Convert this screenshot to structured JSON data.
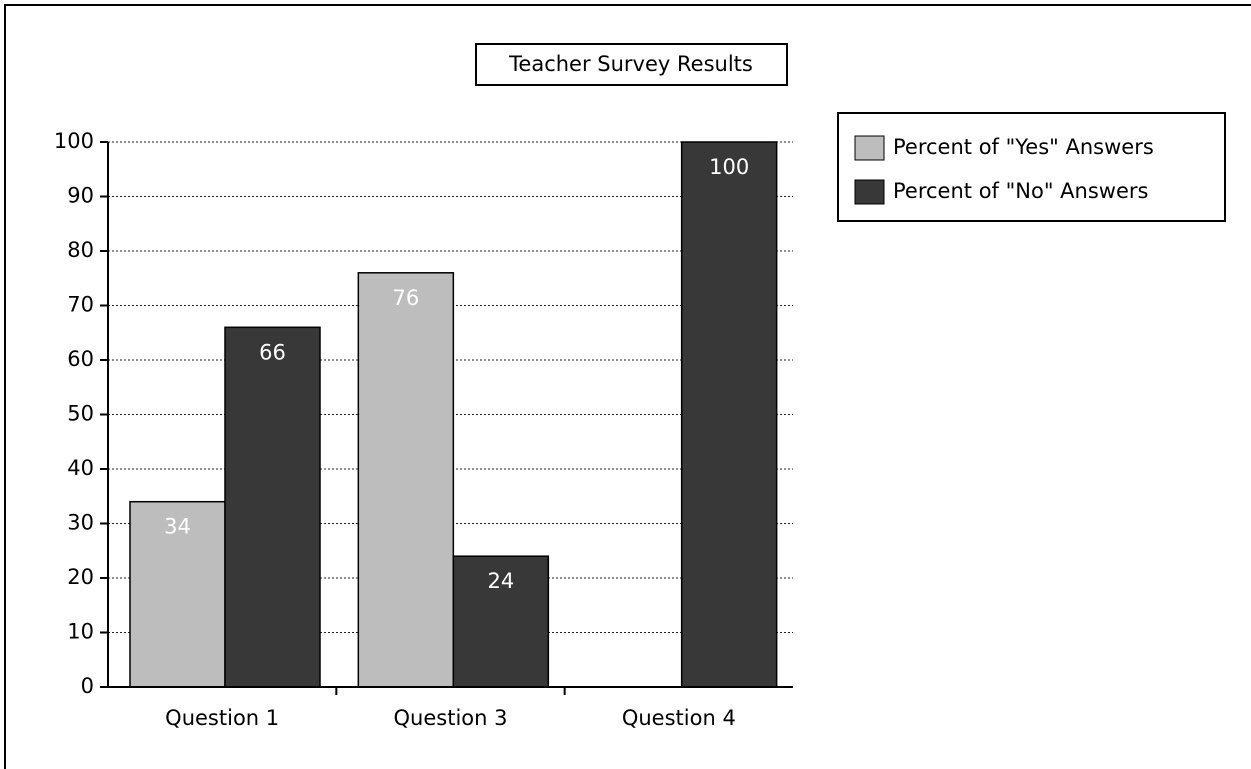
{
  "chart_data": {
    "type": "bar",
    "title": "Teacher Survey Results",
    "categories": [
      "Question 1",
      "Question 3",
      "Question 4"
    ],
    "series": [
      {
        "name": "Percent of \"Yes\" Answers",
        "color": "#bdbdbd",
        "values": [
          34,
          76,
          null
        ]
      },
      {
        "name": "Percent of \"No\" Answers",
        "color": "#383838",
        "values": [
          66,
          24,
          100
        ]
      }
    ],
    "ylim": [
      0,
      100
    ],
    "yticks": [
      0,
      10,
      20,
      30,
      40,
      50,
      60,
      70,
      80,
      90,
      100
    ],
    "grid": true,
    "legend": "right"
  }
}
